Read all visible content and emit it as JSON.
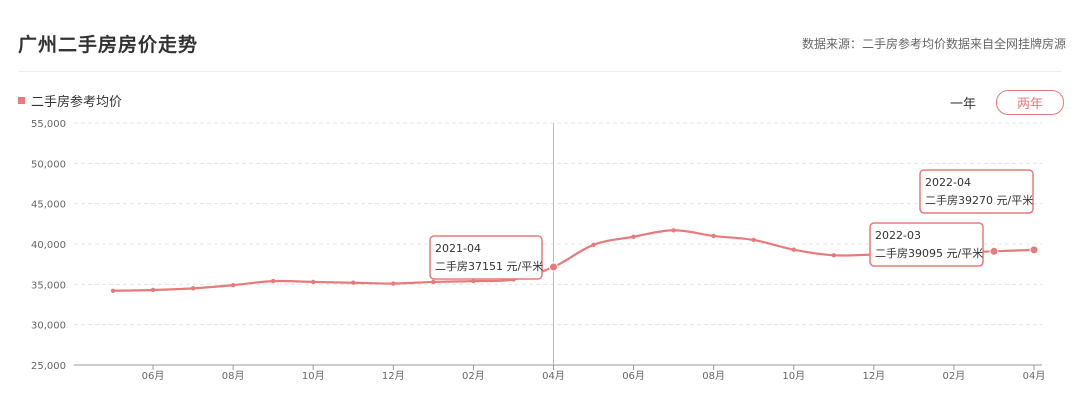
{
  "header": {
    "title": "广州二手房房价走势",
    "source": "数据来源：二手房参考均价数据来自全网挂牌房源"
  },
  "legend": {
    "label": "二手房参考均价",
    "color": "#e77a7a"
  },
  "range_toggle": {
    "one_year": "一年",
    "two_year": "两年",
    "active": "two_year"
  },
  "chart_data": {
    "type": "line",
    "series_name": "二手房参考均价",
    "color": "#e77a7a",
    "ylim": [
      25000,
      55000
    ],
    "yticks": [
      "25,000",
      "30,000",
      "35,000",
      "40,000",
      "45,000",
      "50,000",
      "55,000"
    ],
    "ytick_values": [
      25000,
      30000,
      35000,
      40000,
      45000,
      50000,
      55000
    ],
    "x_months": [
      "2020-05",
      "2020-06",
      "2020-07",
      "2020-08",
      "2020-09",
      "2020-10",
      "2020-11",
      "2020-12",
      "2021-01",
      "2021-02",
      "2021-03",
      "2021-04",
      "2021-05",
      "2021-06",
      "2021-07",
      "2021-08",
      "2021-09",
      "2021-10",
      "2021-11",
      "2021-12",
      "2022-01",
      "2022-02",
      "2022-03",
      "2022-04"
    ],
    "values": [
      34200,
      34300,
      34500,
      34900,
      35400,
      35300,
      35200,
      35100,
      35300,
      35400,
      35600,
      37151,
      39900,
      40900,
      41700,
      41000,
      40500,
      39300,
      38600,
      38700,
      38800,
      38900,
      39095,
      39270
    ],
    "xtick_labels": [
      {
        "month_index": 1,
        "label": "06月"
      },
      {
        "month_index": 3,
        "label": "08月"
      },
      {
        "month_index": 5,
        "label": "10月"
      },
      {
        "month_index": 7,
        "label": "12月"
      },
      {
        "month_index": 9,
        "label": "02月"
      },
      {
        "month_index": 11,
        "label": "04月"
      },
      {
        "month_index": 13,
        "label": "06月"
      },
      {
        "month_index": 15,
        "label": "08月"
      },
      {
        "month_index": 17,
        "label": "10月"
      },
      {
        "month_index": 19,
        "label": "12月"
      },
      {
        "month_index": 21,
        "label": "02月"
      },
      {
        "month_index": 23,
        "label": "04月"
      }
    ],
    "crosshair_month_index": 11,
    "tooltips": [
      {
        "month_index": 11,
        "date": "2021-04",
        "text": "二手房37151 元/平米"
      },
      {
        "month_index": 22,
        "date": "2022-03",
        "text": "二手房39095 元/平米"
      },
      {
        "month_index": 23,
        "date": "2022-04",
        "text": "二手房39270 元/平米"
      }
    ],
    "grid": true
  }
}
